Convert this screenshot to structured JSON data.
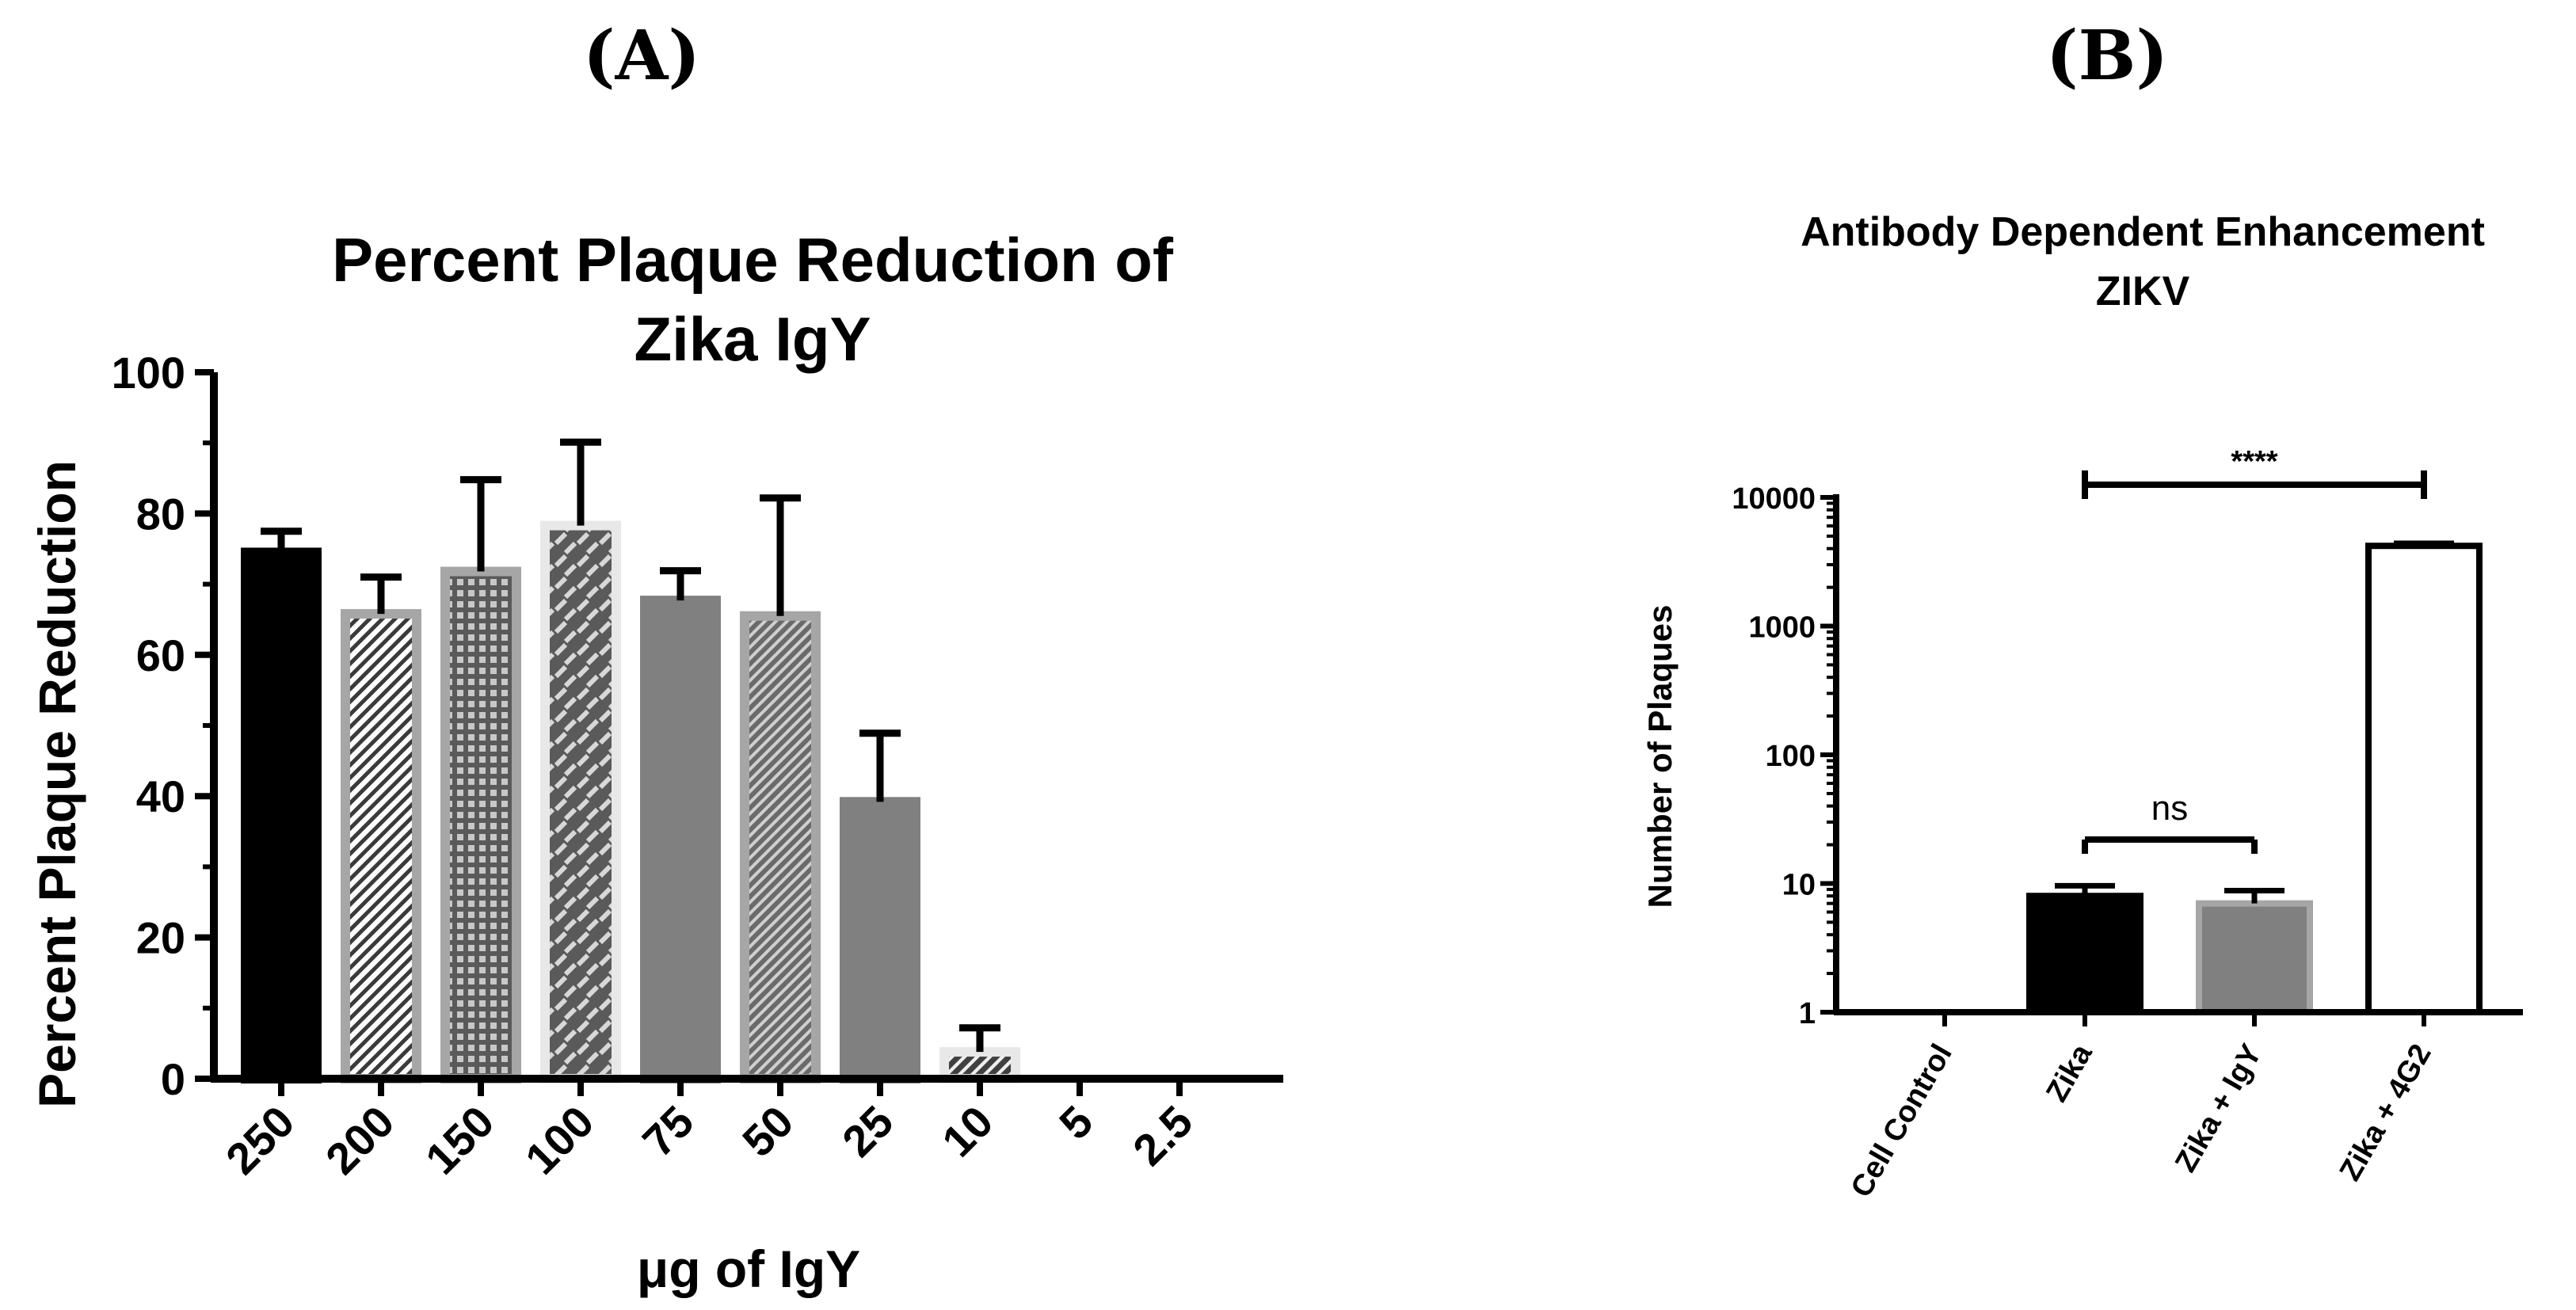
{
  "panels": {
    "a_label": "(A)",
    "b_label": "(B)"
  },
  "chart_data": [
    {
      "type": "bar",
      "title_line1": "Percent Plaque Reduction of",
      "title_line2": "Zika IgY",
      "xlabel": "μg of IgY",
      "ylabel": "Percent Plaque Reduction",
      "ylim": [
        0,
        100
      ],
      "yticks": [
        "0",
        "20",
        "40",
        "60",
        "80",
        "100"
      ],
      "categories": [
        "250",
        "200",
        "150",
        "100",
        "75",
        "50",
        "25",
        "10",
        "5",
        "2.5"
      ],
      "values": [
        74.5,
        65.8,
        71.8,
        78.3,
        67.7,
        65.5,
        39.2,
        3.8,
        0,
        0
      ],
      "errors": [
        3,
        5.2,
        13,
        11.8,
        4.2,
        16.7,
        9.7,
        3.4,
        0,
        0
      ],
      "colors": {
        "black": "#000000",
        "dark_gray": "#808080",
        "mid_gray": "#a6a6a6",
        "light_gray": "#e8e8e8",
        "hatch": "#4d4d4d"
      }
    },
    {
      "type": "bar",
      "title_line1": "Antibody Dependent Enhancement",
      "title_line2": "ZIKV",
      "xlabel": "",
      "ylabel": "Number of Plaques",
      "yscale": "log",
      "ylim": [
        1,
        10000
      ],
      "yticks": [
        "1",
        "10",
        "100",
        "1000",
        "10000"
      ],
      "categories": [
        "Cell Control",
        "Zika",
        "Zika + IgY",
        "Zika + 4G2"
      ],
      "values": [
        1,
        8,
        7,
        4200
      ],
      "errors_upper": [
        1,
        9.6,
        8.8,
        4400
      ],
      "annotations": {
        "ns_label": "ns",
        "sig_label": "****"
      }
    }
  ]
}
